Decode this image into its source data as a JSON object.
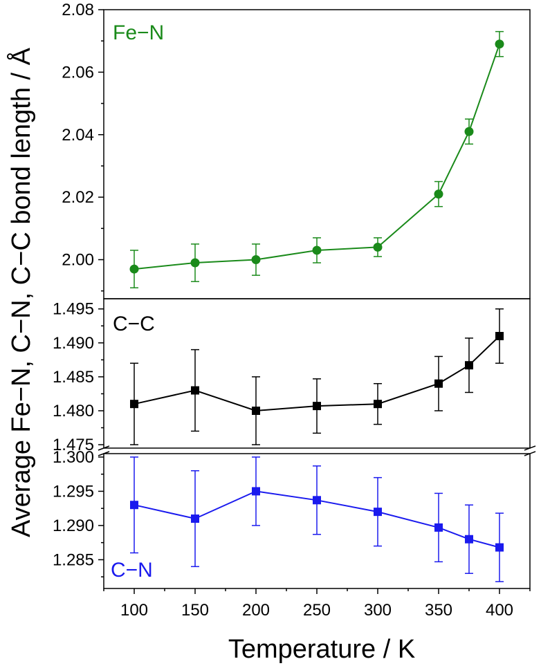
{
  "chart_data": {
    "type": "line",
    "xlabel": "Temperature / K",
    "ylabel": "Average Fe−N, C−N, C−C bond length / Å",
    "xlim": [
      75,
      425
    ],
    "x_ticks": [
      100,
      150,
      200,
      250,
      300,
      350,
      400
    ],
    "panels": [
      {
        "name": "Fe−N",
        "color": "#1a8a1a",
        "marker": "circle",
        "ylim": [
          1.9875,
          2.08
        ],
        "y_ticks": [
          2.0,
          2.02,
          2.04,
          2.06,
          2.08
        ],
        "y_tick_labels": [
          "2.00",
          "2.02",
          "2.04",
          "2.06",
          "2.08"
        ],
        "x": [
          100,
          150,
          200,
          250,
          300,
          350,
          375,
          400
        ],
        "values": [
          1.997,
          1.999,
          2.0,
          2.003,
          2.004,
          2.021,
          2.041,
          2.069
        ],
        "errors": [
          0.006,
          0.006,
          0.005,
          0.004,
          0.003,
          0.004,
          0.004,
          0.004
        ]
      },
      {
        "name": "C−C",
        "color": "#000000",
        "marker": "square",
        "ylim": [
          1.4745,
          1.4965
        ],
        "y_ticks": [
          1.475,
          1.48,
          1.485,
          1.49,
          1.495
        ],
        "y_tick_labels": [
          "1.475",
          "1.480",
          "1.485",
          "1.490",
          "1.495"
        ],
        "x": [
          100,
          150,
          200,
          250,
          300,
          350,
          375,
          400
        ],
        "values": [
          1.481,
          1.483,
          1.48,
          1.4807,
          1.481,
          1.484,
          1.4867,
          1.491
        ],
        "errors": [
          0.006,
          0.006,
          0.005,
          0.004,
          0.003,
          0.004,
          0.004,
          0.004
        ]
      },
      {
        "name": "C−N",
        "color": "#1a1aee",
        "marker": "square",
        "ylim": [
          1.2808,
          1.3005
        ],
        "y_ticks": [
          1.285,
          1.29,
          1.295,
          1.3
        ],
        "y_tick_labels": [
          "1.285",
          "1.290",
          "1.295",
          "1.300"
        ],
        "x": [
          100,
          150,
          200,
          250,
          300,
          350,
          375,
          400
        ],
        "values": [
          1.293,
          1.291,
          1.295,
          1.2937,
          1.292,
          1.2897,
          1.288,
          1.2868
        ],
        "errors": [
          0.007,
          0.007,
          0.005,
          0.005,
          0.005,
          0.005,
          0.005,
          0.005
        ]
      }
    ]
  }
}
